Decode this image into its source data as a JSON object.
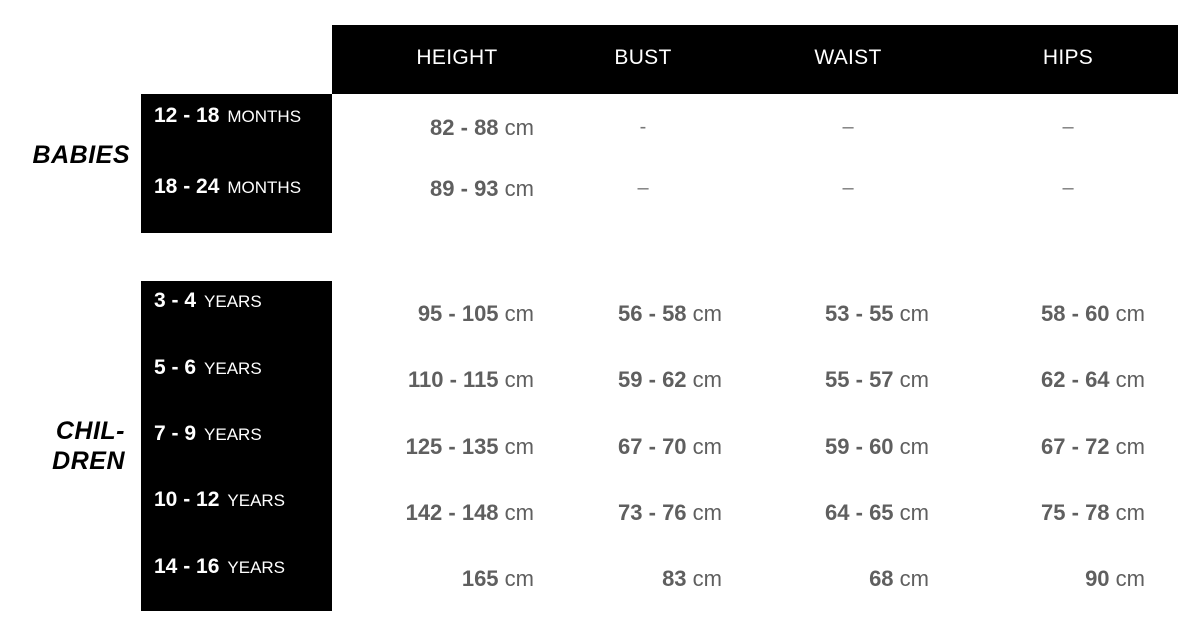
{
  "columns": [
    "HEIGHT",
    "BUST",
    "WAIST",
    "HIPS"
  ],
  "groups": {
    "babies": {
      "label": "BABIES",
      "rows": [
        {
          "age": "12 - 18",
          "unit": "MONTHS",
          "height": {
            "num": "82 - 88",
            "unit": "cm"
          },
          "bust": "-",
          "waist": "–",
          "hips": "–"
        },
        {
          "age": "18 - 24",
          "unit": "MONTHS",
          "height": {
            "num": "89 - 93",
            "unit": "cm"
          },
          "bust": "–",
          "waist": "–",
          "hips": "–"
        }
      ]
    },
    "children": {
      "label_line1": "CHIL-",
      "label_line2": "DREN",
      "rows": [
        {
          "age": "3 - 4",
          "unit": "YEARS",
          "height": {
            "num": "95 - 105",
            "unit": "cm"
          },
          "bust": {
            "num": "56 - 58",
            "unit": "cm"
          },
          "waist": {
            "num": "53 - 55",
            "unit": "cm"
          },
          "hips": {
            "num": "58 - 60",
            "unit": "cm"
          }
        },
        {
          "age": "5 - 6",
          "unit": "YEARS",
          "height": {
            "num": "110 - 115",
            "unit": "cm"
          },
          "bust": {
            "num": "59 - 62",
            "unit": "cm"
          },
          "waist": {
            "num": "55 - 57",
            "unit": "cm"
          },
          "hips": {
            "num": "62 - 64",
            "unit": "cm"
          }
        },
        {
          "age": "7 - 9",
          "unit": "YEARS",
          "height": {
            "num": "125 - 135",
            "unit": "cm"
          },
          "bust": {
            "num": "67 - 70",
            "unit": "cm"
          },
          "waist": {
            "num": "59 - 60",
            "unit": "cm"
          },
          "hips": {
            "num": "67 - 72",
            "unit": "cm"
          }
        },
        {
          "age": "10 - 12",
          "unit": "YEARS",
          "height": {
            "num": "142 - 148",
            "unit": "cm"
          },
          "bust": {
            "num": "73 - 76",
            "unit": "cm"
          },
          "waist": {
            "num": "64 - 65",
            "unit": "cm"
          },
          "hips": {
            "num": "75 - 78",
            "unit": "cm"
          }
        },
        {
          "age": "14 - 16",
          "unit": "YEARS",
          "height": {
            "num": "165",
            "unit": "cm"
          },
          "bust": {
            "num": "83",
            "unit": "cm"
          },
          "waist": {
            "num": "68",
            "unit": "cm"
          },
          "hips": {
            "num": "90",
            "unit": "cm"
          }
        }
      ]
    }
  }
}
